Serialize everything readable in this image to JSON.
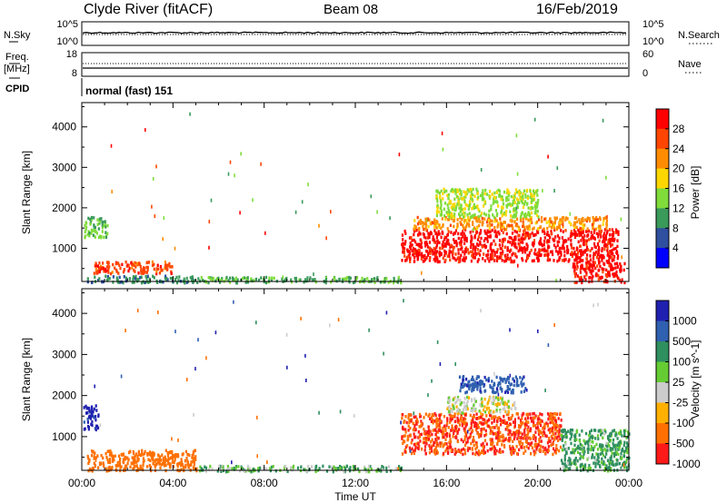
{
  "header": {
    "station": "Clyde River (fitACF)",
    "beam": "Beam 08",
    "date": "16/Feb/2019"
  },
  "param_panels": {
    "nsky_label": "N.Sky",
    "nsky_ticks": [
      "10^5",
      "10^0"
    ],
    "nsearch_label": "N.Search",
    "nsearch_ticks": [
      "10^5",
      "10^0"
    ],
    "freq_label_1": "Freq.",
    "freq_label_2": "[MHz]",
    "freq_ticks": [
      "18",
      "8"
    ],
    "nave_label": "Nave",
    "nave_ticks": [
      "60",
      "0"
    ],
    "cpid_label": "CPID",
    "cpid_value": "normal (fast) 151"
  },
  "x_axis": {
    "label": "Time UT",
    "ticks": [
      "00:00",
      "04:00",
      "08:00",
      "12:00",
      "16:00",
      "20:00",
      "00:00"
    ]
  },
  "y_axis": {
    "label": "Slant Range [km]",
    "ticks": [
      "4000",
      "3000",
      "2000",
      "1000"
    ]
  },
  "power_colorbar": {
    "label": "Power [dB]",
    "ticks": [
      "28",
      "24",
      "20",
      "16",
      "12",
      "8",
      "4"
    ],
    "colors": [
      "#ff0000",
      "#ff4500",
      "#ff8c00",
      "#ffd700",
      "#7fdc3a",
      "#3a9a5a",
      "#2f4f9f",
      "#0000ff"
    ]
  },
  "velocity_colorbar": {
    "label": "Velocity [m s^-1]",
    "ticks": [
      "1000",
      "500",
      "100",
      "25",
      "-25",
      "-100",
      "-500",
      "-1000"
    ],
    "colors": [
      "#2020b0",
      "#3060b0",
      "#2f8f5f",
      "#66cc33",
      "#cccccc",
      "#ffb000",
      "#ff7000",
      "#ff1a1a"
    ]
  },
  "chart_data": [
    {
      "type": "heatmap",
      "title": "Power",
      "xlabel": "Time UT",
      "ylabel": "Slant Range [km]",
      "xlim": [
        0,
        24
      ],
      "ylim": [
        180,
        4600
      ],
      "colorbar": "Power [dB]",
      "regions": [
        {
          "t": [
            0.05,
            1.1
          ],
          "r": [
            1300,
            1800
          ],
          "value": 12
        },
        {
          "t": [
            0.2,
            5.0
          ],
          "r": [
            180,
            350
          ],
          "value": 8
        },
        {
          "t": [
            0.5,
            4.0
          ],
          "r": [
            400,
            700
          ],
          "value": 24
        },
        {
          "t": [
            5.0,
            14.0
          ],
          "r": [
            180,
            320
          ],
          "value": 10
        },
        {
          "t": [
            14.0,
            23.5
          ],
          "r": [
            700,
            1500
          ],
          "value": 28
        },
        {
          "t": [
            14.5,
            23.0
          ],
          "r": [
            1500,
            1800
          ],
          "value": 20
        },
        {
          "t": [
            15.5,
            20.0
          ],
          "r": [
            1800,
            2500
          ],
          "value": 14
        },
        {
          "t": [
            21.5,
            23.8
          ],
          "r": [
            180,
            700
          ],
          "value": 28
        }
      ]
    },
    {
      "type": "heatmap",
      "title": "Velocity",
      "xlabel": "Time UT",
      "ylabel": "Slant Range [km]",
      "xlim": [
        0,
        24
      ],
      "ylim": [
        180,
        4600
      ],
      "colorbar": "Velocity [m s^-1]",
      "regions": [
        {
          "t": [
            0.05,
            0.7
          ],
          "r": [
            1200,
            1800
          ],
          "value": 800
        },
        {
          "t": [
            0.2,
            5.0
          ],
          "r": [
            200,
            700
          ],
          "value": -200
        },
        {
          "t": [
            5.0,
            14.0
          ],
          "r": [
            180,
            320
          ],
          "value": 60
        },
        {
          "t": [
            14.0,
            21.0
          ],
          "r": [
            600,
            1600
          ],
          "value": -300
        },
        {
          "t": [
            16.0,
            19.0
          ],
          "r": [
            1600,
            2000
          ],
          "value": 0
        },
        {
          "t": [
            16.5,
            19.5
          ],
          "r": [
            2100,
            2500
          ],
          "value": 700
        },
        {
          "t": [
            21.0,
            24.0
          ],
          "r": [
            200,
            1200
          ],
          "value": 80
        }
      ]
    }
  ]
}
